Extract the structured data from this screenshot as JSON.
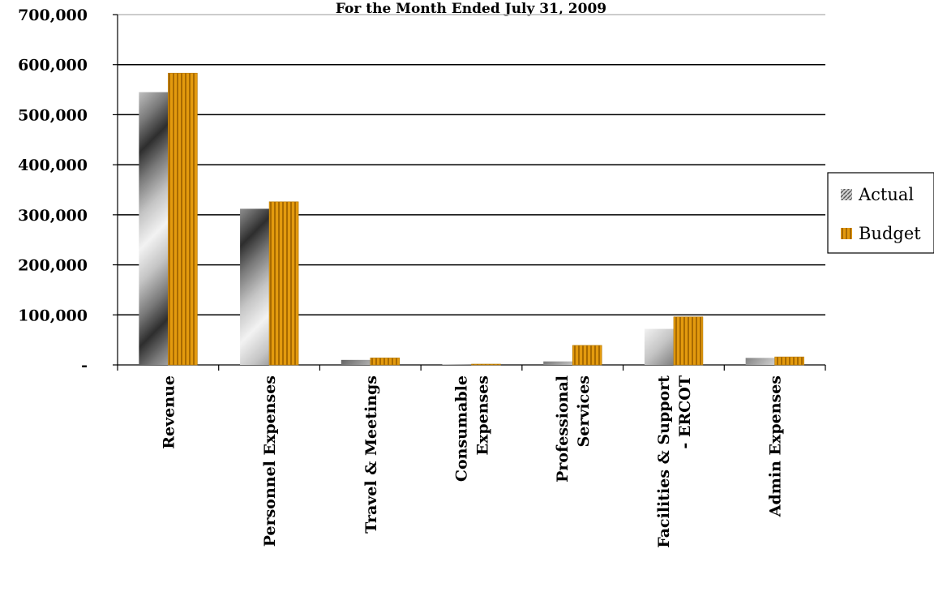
{
  "chart_data": {
    "type": "bar",
    "title": "For the Month Ended July 31, 2009",
    "categories": [
      [
        "Revenue"
      ],
      [
        "Personnel Expenses"
      ],
      [
        "Travel & Meetings"
      ],
      [
        "Consumable",
        "Expenses"
      ],
      [
        "Professional",
        "Services"
      ],
      [
        "Facilities & Support",
        "- ERCOT"
      ],
      [
        "Admin Expenses"
      ]
    ],
    "series": [
      {
        "name": "Actual",
        "values": [
          545000,
          312000,
          10000,
          1000,
          7000,
          72000,
          14000
        ],
        "color": "#9a9a9a"
      },
      {
        "name": "Budget",
        "values": [
          583000,
          326000,
          14000,
          1500,
          39000,
          96000,
          16000
        ],
        "color": "#d08a00"
      }
    ],
    "ylim": [
      0,
      700000
    ],
    "yticks": [
      0,
      100000,
      200000,
      300000,
      400000,
      500000,
      600000,
      700000
    ],
    "ytick_labels": [
      "-",
      "100,000",
      "200,000",
      "300,000",
      "400,000",
      "500,000",
      "600,000",
      "700,000"
    ],
    "grid": true,
    "legend": "right"
  }
}
